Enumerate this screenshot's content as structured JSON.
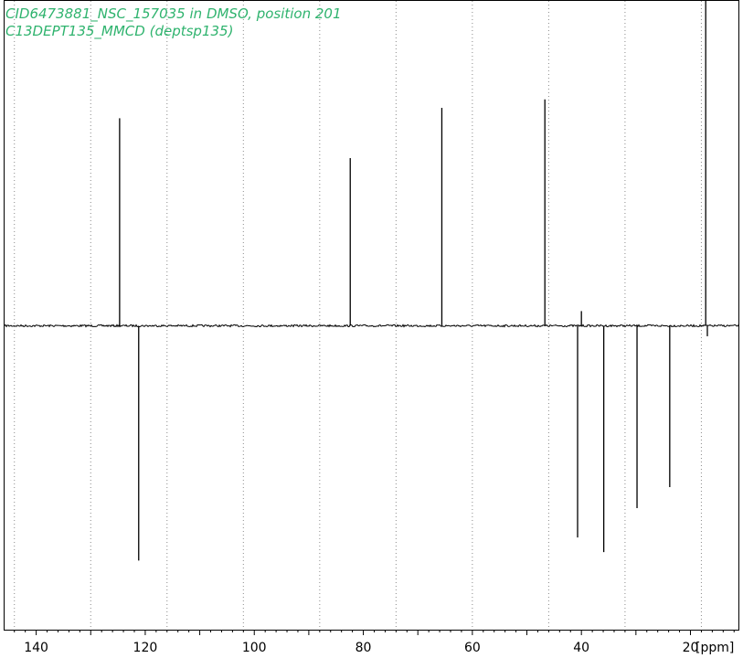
{
  "title": {
    "line1": "CID6473881_NSC_157035 in DMSO, position 201",
    "line2": "C13DEPT135_MMCD (deptsp135)"
  },
  "colors": {
    "title": "#2fb36e",
    "spectrum": "#000000",
    "grid": "#8a8a8a",
    "frame": "#000000"
  },
  "chart_data": {
    "type": "line",
    "xlabel": "[ppm]",
    "x_axis_reversed": true,
    "xlim": [
      145.8,
      11.2
    ],
    "ylim": [
      -1.45,
      1.55
    ],
    "grid": "vertical dotted",
    "x_ticks": [
      140,
      120,
      100,
      80,
      60,
      40,
      20
    ],
    "peaks": [
      {
        "ppm": 124.7,
        "intensity": 0.99
      },
      {
        "ppm": 121.2,
        "intensity": -1.12
      },
      {
        "ppm": 82.4,
        "intensity": 0.8
      },
      {
        "ppm": 65.6,
        "intensity": 1.04
      },
      {
        "ppm": 46.7,
        "intensity": 1.08
      },
      {
        "ppm": 40.0,
        "intensity": 0.07
      },
      {
        "ppm": 40.7,
        "intensity": -1.01
      },
      {
        "ppm": 35.9,
        "intensity": -1.08
      },
      {
        "ppm": 29.8,
        "intensity": -0.87
      },
      {
        "ppm": 23.8,
        "intensity": -0.77
      },
      {
        "ppm": 17.2,
        "intensity": 1.7
      },
      {
        "ppm": 16.9,
        "intensity": -0.05
      }
    ]
  }
}
